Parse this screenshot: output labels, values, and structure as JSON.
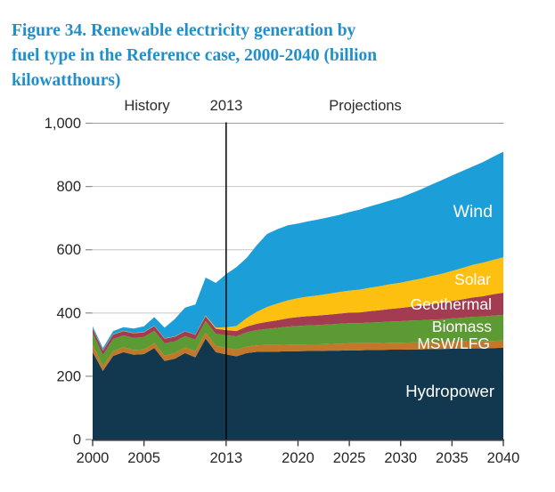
{
  "title": {
    "lines": [
      "Figure 34. Renewable electricity generation by",
      "fuel type in the Reference case, 2000-2040 (billion",
      "kilowatthours)"
    ],
    "color": "#2090CD"
  },
  "header": {
    "history": "History",
    "divider_year": "2013",
    "projections": "Projections"
  },
  "chart_data": {
    "type": "area",
    "stacked": true,
    "title": "Renewable electricity generation by fuel type in the Reference case, 2000-2040",
    "unit": "billion kilowatthours",
    "x_range": [
      2000,
      2040
    ],
    "ylim": [
      0,
      1000
    ],
    "divider_year": 2013,
    "grid_on": true,
    "legend_position": "in-plot area labels",
    "x_ticks": {
      "values": [
        2000,
        2005,
        2013,
        2020,
        2025,
        2030,
        2035,
        2040
      ],
      "labels": [
        "2000",
        "2005",
        "2013",
        "2020",
        "2025",
        "2030",
        "2035",
        "2040"
      ]
    },
    "y_ticks": {
      "values": [
        0,
        200,
        400,
        600,
        800,
        1000
      ],
      "labels": [
        "0",
        "200",
        "400",
        "600",
        "800",
        "1,000"
      ]
    },
    "colors": {
      "grid": "#CDCDCD",
      "grid_top": "#9C9C9C",
      "tick_stub": "#8F8F8F",
      "axis": "#3D3D3D",
      "axis_text": "#262626",
      "divider_line": "#000000",
      "area_label_text": "#FFFFFF"
    },
    "years": [
      2000,
      2001,
      2002,
      2003,
      2004,
      2005,
      2006,
      2007,
      2008,
      2009,
      2010,
      2011,
      2012,
      2013,
      2014,
      2015,
      2016,
      2017,
      2018,
      2019,
      2020,
      2021,
      2022,
      2023,
      2024,
      2025,
      2026,
      2027,
      2028,
      2029,
      2030,
      2031,
      2032,
      2033,
      2034,
      2035,
      2036,
      2037,
      2038,
      2039,
      2040
    ],
    "series": [
      {
        "name": "Hydropower",
        "color": "#12384F",
        "values": [
          276,
          217,
          264,
          276,
          268,
          270,
          289,
          248,
          255,
          273,
          260,
          319,
          276,
          269,
          263,
          273,
          277,
          278,
          278,
          279,
          279,
          280,
          280,
          281,
          281,
          282,
          282,
          283,
          283,
          284,
          284,
          285,
          285,
          286,
          286,
          287,
          287,
          288,
          288,
          289,
          290
        ]
      },
      {
        "name": "MSW/LFG",
        "color": "#C1782A",
        "values": [
          23,
          15,
          15,
          16,
          15,
          15,
          16,
          17,
          18,
          18,
          19,
          19,
          20,
          21,
          21,
          21,
          21,
          21,
          21,
          21,
          21,
          21,
          21,
          21,
          22,
          22,
          22,
          22,
          22,
          22,
          22,
          22,
          22,
          22,
          22,
          22,
          23,
          23,
          23,
          23,
          23
        ]
      },
      {
        "name": "Biomass",
        "color": "#5C9A33",
        "values": [
          38,
          35,
          39,
          37,
          38,
          39,
          39,
          39,
          37,
          36,
          37,
          37,
          38,
          40,
          42,
          45,
          48,
          51,
          54,
          57,
          59,
          60,
          61,
          62,
          63,
          64,
          64,
          65,
          66,
          67,
          68,
          69,
          70,
          71,
          72,
          74,
          75,
          77,
          78,
          80,
          81
        ]
      },
      {
        "name": "Geothermal",
        "color": "#A33C50",
        "values": [
          14,
          14,
          14,
          14,
          15,
          15,
          15,
          15,
          15,
          15,
          15,
          15,
          16,
          16,
          17,
          18,
          20,
          22,
          24,
          26,
          28,
          29,
          30,
          31,
          32,
          33,
          34,
          36,
          38,
          40,
          42,
          44,
          46,
          49,
          52,
          55,
          58,
          61,
          64,
          67,
          70
        ]
      },
      {
        "name": "Solar",
        "color": "#FDC011",
        "values": [
          1,
          1,
          1,
          1,
          1,
          1,
          1,
          1,
          1,
          1,
          1,
          2,
          4,
          9,
          16,
          27,
          38,
          47,
          53,
          57,
          60,
          62,
          64,
          66,
          68,
          70,
          72,
          74,
          76,
          78,
          80,
          83,
          86,
          89,
          92,
          95,
          99,
          103,
          106,
          109,
          112
        ]
      },
      {
        "name": "Wind",
        "color": "#1C9ED9",
        "values": [
          6,
          7,
          10,
          11,
          14,
          18,
          27,
          34,
          55,
          74,
          95,
          120,
          141,
          168,
          186,
          190,
          211,
          231,
          235,
          237,
          236,
          238,
          240,
          242,
          244,
          248,
          253,
          257,
          261,
          265,
          269,
          275,
          282,
          289,
          296,
          302,
          307,
          311,
          318,
          326,
          334
        ]
      }
    ]
  }
}
